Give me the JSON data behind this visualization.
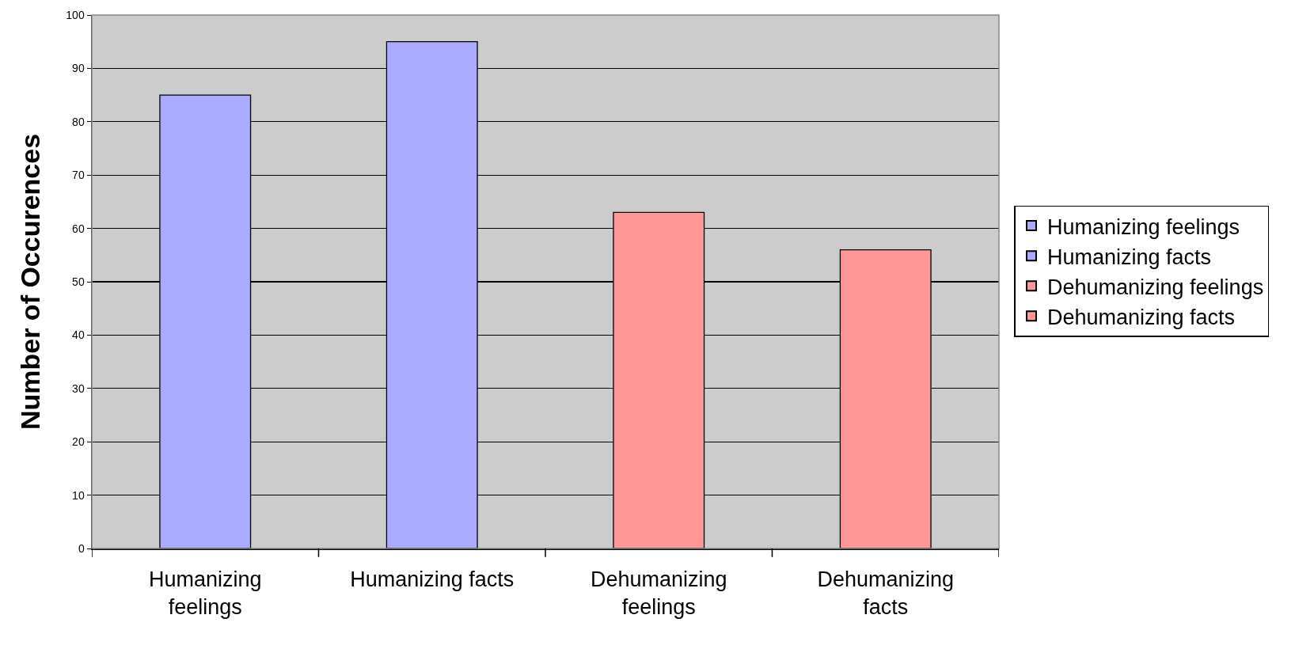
{
  "chart_data": {
    "type": "bar",
    "ylabel": "Number of Occurences",
    "categories": [
      "Humanizing feelings",
      "Humanizing facts",
      "Dehumanizing feelings",
      "Dehumanizing facts"
    ],
    "series": [
      {
        "name": "Humanizing feelings",
        "color": "#aaaaff",
        "values": [
          85,
          null,
          null,
          null
        ]
      },
      {
        "name": "Humanizing facts",
        "color": "#aaaaff",
        "values": [
          null,
          95,
          null,
          null
        ]
      },
      {
        "name": "Dehumanizing feelings",
        "color": "#ff9999",
        "values": [
          null,
          null,
          63,
          null
        ]
      },
      {
        "name": "Dehumanizing facts",
        "color": "#ff9999",
        "values": [
          null,
          null,
          null,
          56
        ]
      }
    ],
    "ylim": [
      0,
      100
    ],
    "yticks": [
      0,
      10,
      20,
      30,
      40,
      50,
      60,
      70,
      80,
      90,
      100
    ],
    "grid": "y",
    "legend": "right"
  }
}
